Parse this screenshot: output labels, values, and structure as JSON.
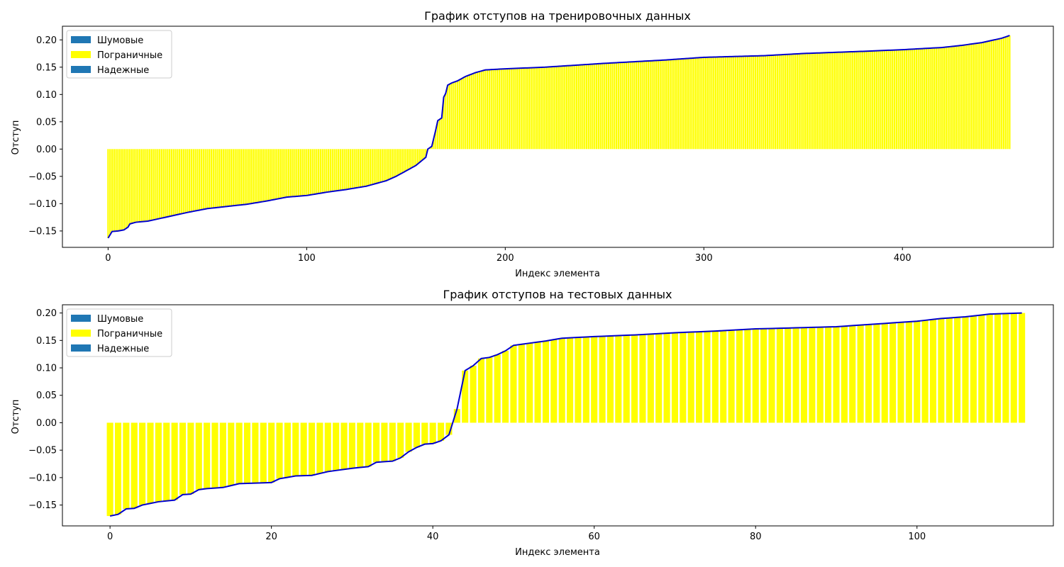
{
  "chart_data": [
    {
      "type": "bar",
      "title": "График отступов на тренировочных данных",
      "xlabel": "Индекс элемента",
      "ylabel": "Отступ",
      "xlim": [
        -23,
        476
      ],
      "ylim": [
        -0.18,
        0.225
      ],
      "xticks": [
        0,
        100,
        200,
        300,
        400
      ],
      "yticks": [
        -0.15,
        -0.1,
        -0.05,
        0.0,
        0.05,
        0.1,
        0.15,
        0.2
      ],
      "ytick_labels": [
        "−0.15",
        "−0.10",
        "−0.05",
        "0.00",
        "0.05",
        "0.10",
        "0.15",
        "0.20"
      ],
      "n_points": 455,
      "curve_points": [
        [
          0,
          -0.163
        ],
        [
          2,
          -0.151
        ],
        [
          5,
          -0.15
        ],
        [
          8,
          -0.148
        ],
        [
          10,
          -0.143
        ],
        [
          11,
          -0.137
        ],
        [
          14,
          -0.134
        ],
        [
          20,
          -0.132
        ],
        [
          30,
          -0.124
        ],
        [
          40,
          -0.116
        ],
        [
          50,
          -0.109
        ],
        [
          60,
          -0.105
        ],
        [
          70,
          -0.101
        ],
        [
          80,
          -0.095
        ],
        [
          90,
          -0.088
        ],
        [
          100,
          -0.085
        ],
        [
          110,
          -0.079
        ],
        [
          120,
          -0.074
        ],
        [
          130,
          -0.068
        ],
        [
          140,
          -0.058
        ],
        [
          145,
          -0.05
        ],
        [
          150,
          -0.04
        ],
        [
          155,
          -0.03
        ],
        [
          160,
          -0.015
        ],
        [
          161,
          0.0
        ],
        [
          163,
          0.005
        ],
        [
          165,
          0.035
        ],
        [
          166,
          0.052
        ],
        [
          168,
          0.057
        ],
        [
          169,
          0.095
        ],
        [
          170,
          0.102
        ],
        [
          171,
          0.117
        ],
        [
          173,
          0.121
        ],
        [
          176,
          0.125
        ],
        [
          180,
          0.133
        ],
        [
          185,
          0.14
        ],
        [
          190,
          0.145
        ],
        [
          200,
          0.147
        ],
        [
          220,
          0.15
        ],
        [
          250,
          0.157
        ],
        [
          280,
          0.163
        ],
        [
          300,
          0.168
        ],
        [
          330,
          0.171
        ],
        [
          350,
          0.175
        ],
        [
          380,
          0.179
        ],
        [
          400,
          0.182
        ],
        [
          420,
          0.186
        ],
        [
          430,
          0.19
        ],
        [
          440,
          0.195
        ],
        [
          450,
          0.203
        ],
        [
          454,
          0.208
        ]
      ],
      "legend": [
        "Шумовые",
        "Пограничные",
        "Надежные"
      ],
      "legend_position": "upper-left",
      "grid": false
    },
    {
      "type": "bar",
      "title": "График отступов на тестовых данных",
      "xlabel": "Индекс элемента",
      "ylabel": "Отступ",
      "xlim": [
        -5.9,
        116.9
      ],
      "ylim": [
        -0.188,
        0.215
      ],
      "xticks": [
        0,
        20,
        40,
        60,
        80,
        100
      ],
      "yticks": [
        -0.15,
        -0.1,
        -0.05,
        0.0,
        0.05,
        0.1,
        0.15,
        0.2
      ],
      "ytick_labels": [
        "−0.15",
        "−0.10",
        "−0.05",
        "0.00",
        "0.05",
        "0.10",
        "0.15",
        "0.20"
      ],
      "n_points": 114,
      "curve_points": [
        [
          0,
          -0.17
        ],
        [
          1,
          -0.167
        ],
        [
          2,
          -0.157
        ],
        [
          3,
          -0.156
        ],
        [
          4,
          -0.15
        ],
        [
          6,
          -0.144
        ],
        [
          8,
          -0.141
        ],
        [
          9,
          -0.131
        ],
        [
          10,
          -0.13
        ],
        [
          11,
          -0.122
        ],
        [
          12,
          -0.12
        ],
        [
          14,
          -0.118
        ],
        [
          16,
          -0.111
        ],
        [
          20,
          -0.109
        ],
        [
          21,
          -0.102
        ],
        [
          23,
          -0.097
        ],
        [
          25,
          -0.096
        ],
        [
          27,
          -0.089
        ],
        [
          30,
          -0.083
        ],
        [
          32,
          -0.08
        ],
        [
          33,
          -0.072
        ],
        [
          35,
          -0.07
        ],
        [
          36,
          -0.064
        ],
        [
          37,
          -0.053
        ],
        [
          38,
          -0.045
        ],
        [
          39,
          -0.039
        ],
        [
          40,
          -0.038
        ],
        [
          41,
          -0.033
        ],
        [
          42,
          -0.022
        ],
        [
          43,
          0.025
        ],
        [
          44,
          0.095
        ],
        [
          45,
          0.104
        ],
        [
          46,
          0.117
        ],
        [
          47,
          0.119
        ],
        [
          48,
          0.124
        ],
        [
          49,
          0.131
        ],
        [
          50,
          0.141
        ],
        [
          52,
          0.145
        ],
        [
          54,
          0.149
        ],
        [
          56,
          0.154
        ],
        [
          60,
          0.157
        ],
        [
          65,
          0.16
        ],
        [
          70,
          0.164
        ],
        [
          75,
          0.167
        ],
        [
          80,
          0.171
        ],
        [
          85,
          0.173
        ],
        [
          90,
          0.175
        ],
        [
          95,
          0.18
        ],
        [
          100,
          0.185
        ],
        [
          103,
          0.19
        ],
        [
          106,
          0.193
        ],
        [
          109,
          0.198
        ],
        [
          113,
          0.2
        ]
      ],
      "legend": [
        "Шумовые",
        "Пограничные",
        "Надежные"
      ],
      "legend_position": "upper-left",
      "grid": false
    }
  ],
  "colors": {
    "noise": "#1f77b4",
    "border": "#ffff00",
    "reliable": "#1f77b4",
    "curve": "#0000cd",
    "axis": "#000000",
    "legend_border": "#cccccc"
  }
}
